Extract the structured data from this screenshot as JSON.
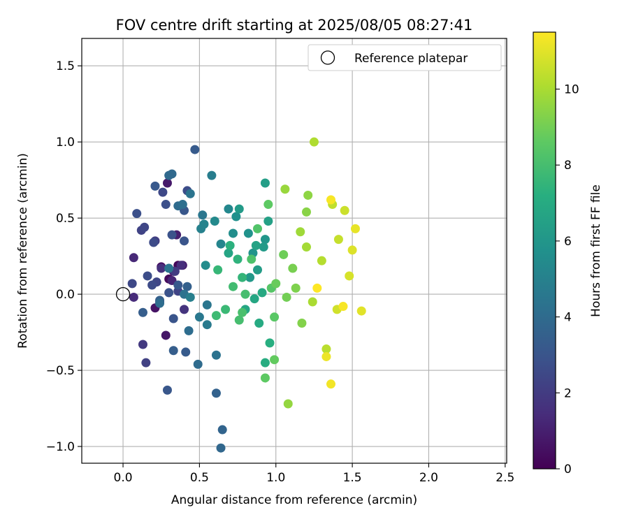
{
  "chart_data": {
    "type": "scatter",
    "title": "FOV centre drift starting at 2025/08/05 08:27:41",
    "xlabel": "Angular distance from reference (arcmin)",
    "ylabel": "Rotation from reference (arcmin)",
    "xlim": [
      -0.27,
      2.51
    ],
    "ylim": [
      -1.11,
      1.68
    ],
    "xticks": [
      "0.0",
      "0.5",
      "1.0",
      "1.5",
      "2.0",
      "2.5"
    ],
    "xtick_values": [
      0,
      0.5,
      1.0,
      1.5,
      2.0,
      2.5
    ],
    "yticks": [
      "−1.0",
      "−0.5",
      "0.0",
      "0.5",
      "1.0",
      "1.5"
    ],
    "ytick_values": [
      -1.0,
      -0.5,
      0,
      0.5,
      1.0,
      1.5
    ],
    "grid": true,
    "legend": {
      "position": "top-right",
      "label": "Reference platepar"
    },
    "reference_point": {
      "x": 0.0,
      "y": 0.0
    },
    "colorbar": {
      "label": "Hours from first FF file",
      "colormap": "viridis",
      "range": [
        0,
        11.5
      ],
      "ticks": [
        "0",
        "2",
        "4",
        "6",
        "8",
        "10"
      ],
      "tick_values": [
        0,
        2,
        4,
        6,
        8,
        10
      ]
    },
    "points": [
      [
        0.36,
        0.19,
        0.2
      ],
      [
        0.3,
        0.1,
        0.3
      ],
      [
        0.25,
        0.18,
        0.5
      ],
      [
        0.21,
        -0.09,
        0.6
      ],
      [
        0.28,
        -0.27,
        0.7
      ],
      [
        0.29,
        0.73,
        0.8
      ],
      [
        0.39,
        0.19,
        0.9
      ],
      [
        0.35,
        0.39,
        1.0
      ],
      [
        0.33,
        0.15,
        1.1
      ],
      [
        0.32,
        0.09,
        1.2
      ],
      [
        0.07,
        0.24,
        1.3
      ],
      [
        0.07,
        -0.02,
        1.4
      ],
      [
        0.38,
        0.19,
        1.5
      ],
      [
        0.25,
        0.17,
        1.6
      ],
      [
        0.4,
        -0.1,
        1.7
      ],
      [
        0.24,
        -0.05,
        1.8
      ],
      [
        0.13,
        -0.33,
        1.9
      ],
      [
        0.34,
        0.15,
        2.0
      ],
      [
        0.21,
        0.35,
        2.1
      ],
      [
        0.15,
        -0.45,
        2.2
      ],
      [
        0.12,
        0.42,
        2.3
      ],
      [
        0.36,
        0.02,
        2.3
      ],
      [
        0.14,
        0.44,
        2.4
      ],
      [
        0.22,
        0.08,
        2.4
      ],
      [
        0.26,
        0.67,
        2.5
      ],
      [
        0.06,
        0.07,
        2.5
      ],
      [
        0.2,
        0.34,
        2.6
      ],
      [
        0.19,
        0.06,
        2.6
      ],
      [
        0.16,
        0.12,
        2.7
      ],
      [
        0.42,
        0.68,
        2.7
      ],
      [
        0.09,
        0.53,
        2.8
      ],
      [
        0.28,
        0.59,
        2.8
      ],
      [
        0.32,
        0.39,
        2.9
      ],
      [
        0.3,
        0.01,
        2.9
      ],
      [
        0.33,
        -0.16,
        3.0
      ],
      [
        0.4,
        0.35,
        3.0
      ],
      [
        0.4,
        0.55,
        3.1
      ],
      [
        0.29,
        -0.63,
        3.1
      ],
      [
        0.21,
        0.71,
        3.2
      ],
      [
        0.36,
        0.06,
        3.2
      ],
      [
        0.47,
        0.95,
        3.3
      ],
      [
        0.41,
        -0.38,
        3.3
      ],
      [
        0.33,
        -0.37,
        3.4
      ],
      [
        0.13,
        -0.12,
        3.4
      ],
      [
        0.24,
        -0.04,
        3.5
      ],
      [
        0.42,
        0.05,
        3.5
      ],
      [
        0.61,
        -0.65,
        3.6
      ],
      [
        0.65,
        -0.89,
        3.7
      ],
      [
        0.64,
        -1.01,
        3.8
      ],
      [
        0.3,
        0.78,
        3.9
      ],
      [
        0.32,
        0.79,
        3.9
      ],
      [
        0.36,
        0.58,
        4.0
      ],
      [
        0.49,
        -0.46,
        4.0
      ],
      [
        0.43,
        -0.24,
        4.1
      ],
      [
        0.24,
        -0.06,
        4.1
      ],
      [
        0.39,
        0.59,
        4.2
      ],
      [
        0.4,
        0.0,
        4.3
      ],
      [
        0.61,
        -0.4,
        4.3
      ],
      [
        0.44,
        0.66,
        4.4
      ],
      [
        0.3,
        0.17,
        4.4
      ],
      [
        0.52,
        0.52,
        4.5
      ],
      [
        0.55,
        -0.07,
        4.5
      ],
      [
        0.5,
        -0.15,
        4.6
      ],
      [
        0.55,
        -0.2,
        4.7
      ],
      [
        0.58,
        0.78,
        4.8
      ],
      [
        0.44,
        -0.02,
        4.9
      ],
      [
        0.51,
        0.43,
        5.0
      ],
      [
        0.53,
        0.46,
        5.1
      ],
      [
        0.64,
        0.33,
        5.2
      ],
      [
        0.69,
        0.56,
        5.3
      ],
      [
        0.6,
        0.48,
        5.4
      ],
      [
        0.54,
        0.19,
        5.5
      ],
      [
        0.72,
        0.4,
        5.6
      ],
      [
        0.74,
        0.51,
        5.7
      ],
      [
        0.82,
        0.4,
        5.8
      ],
      [
        0.85,
        0.27,
        5.9
      ],
      [
        0.93,
        0.36,
        6.0
      ],
      [
        0.83,
        0.11,
        6.1
      ],
      [
        0.76,
        0.56,
        6.2
      ],
      [
        0.92,
        0.31,
        6.2
      ],
      [
        0.88,
        0.16,
        6.3
      ],
      [
        0.93,
        0.73,
        6.4
      ],
      [
        0.95,
        0.48,
        6.5
      ],
      [
        0.87,
        0.32,
        6.6
      ],
      [
        0.69,
        0.27,
        6.7
      ],
      [
        0.8,
        -0.1,
        6.8
      ],
      [
        0.86,
        -0.03,
        6.8
      ],
      [
        0.91,
        0.01,
        6.9
      ],
      [
        0.89,
        -0.19,
        7.0
      ],
      [
        0.93,
        -0.45,
        7.1
      ],
      [
        0.96,
        -0.32,
        7.2
      ],
      [
        0.7,
        0.32,
        7.3
      ],
      [
        0.75,
        0.23,
        7.4
      ],
      [
        0.78,
        0.11,
        7.5
      ],
      [
        0.62,
        0.16,
        7.6
      ],
      [
        0.67,
        -0.1,
        7.7
      ],
      [
        0.61,
        -0.14,
        7.8
      ],
      [
        0.72,
        0.05,
        7.9
      ],
      [
        0.76,
        -0.17,
        8.0
      ],
      [
        0.8,
        0.0,
        8.0
      ],
      [
        0.78,
        -0.12,
        8.1
      ],
      [
        0.84,
        0.23,
        8.2
      ],
      [
        0.88,
        0.43,
        8.3
      ],
      [
        0.97,
        0.04,
        8.4
      ],
      [
        0.99,
        -0.15,
        8.5
      ],
      [
        0.95,
        0.59,
        8.6
      ],
      [
        0.93,
        -0.55,
        8.6
      ],
      [
        0.99,
        -0.43,
        8.7
      ],
      [
        1.0,
        0.07,
        8.8
      ],
      [
        1.05,
        0.26,
        8.9
      ],
      [
        1.07,
        -0.02,
        9.0
      ],
      [
        1.11,
        0.17,
        9.1
      ],
      [
        1.13,
        0.04,
        9.2
      ],
      [
        1.17,
        -0.19,
        9.3
      ],
      [
        1.2,
        0.54,
        9.4
      ],
      [
        1.21,
        0.65,
        9.5
      ],
      [
        1.08,
        -0.72,
        9.6
      ],
      [
        1.06,
        0.69,
        9.7
      ],
      [
        1.16,
        0.41,
        9.8
      ],
      [
        1.2,
        0.31,
        9.9
      ],
      [
        1.24,
        -0.05,
        10.0
      ],
      [
        1.25,
        1.0,
        10.1
      ],
      [
        1.3,
        0.22,
        10.2
      ],
      [
        1.33,
        -0.36,
        10.3
      ],
      [
        1.37,
        0.59,
        10.4
      ],
      [
        1.41,
        0.36,
        10.5
      ],
      [
        1.45,
        0.55,
        10.6
      ],
      [
        1.4,
        -0.1,
        10.7
      ],
      [
        1.48,
        0.12,
        10.8
      ],
      [
        1.5,
        0.29,
        10.9
      ],
      [
        1.56,
        -0.11,
        11.0
      ],
      [
        1.52,
        0.43,
        11.1
      ],
      [
        1.33,
        -0.41,
        11.2
      ],
      [
        1.36,
        -0.59,
        11.3
      ],
      [
        1.36,
        0.62,
        11.4
      ],
      [
        1.44,
        -0.08,
        11.4
      ],
      [
        1.27,
        0.04,
        11.5
      ]
    ]
  }
}
